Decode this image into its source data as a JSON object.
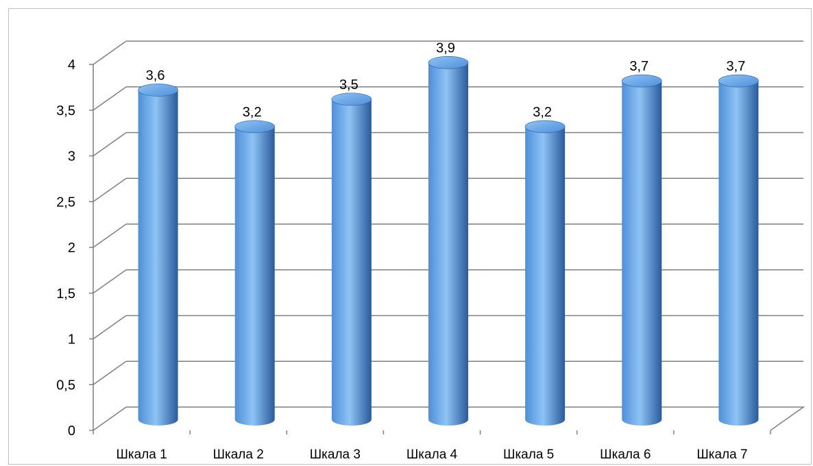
{
  "chart_data": {
    "type": "bar",
    "style": "3d-cylinder",
    "categories": [
      "Шкала 1",
      "Шкала 2",
      "Шкала 3",
      "Шкала 4",
      "Шкала 5",
      "Шкала 6",
      "Шкала 7"
    ],
    "values": [
      3.6,
      3.2,
      3.5,
      3.9,
      3.2,
      3.7,
      3.7
    ],
    "value_labels": [
      "3,6",
      "3,2",
      "3,5",
      "3,9",
      "3,2",
      "3,7",
      "3,7"
    ],
    "y_ticks": [
      0,
      0.5,
      1,
      1.5,
      2,
      2.5,
      3,
      3.5,
      4
    ],
    "y_tick_labels": [
      "0",
      "0,5",
      "1",
      "1,5",
      "2",
      "2,5",
      "3",
      "3,5",
      "4"
    ],
    "ylim": [
      0,
      4
    ],
    "title": "",
    "xlabel": "",
    "ylabel": "",
    "grid": true,
    "legend": "none",
    "colors": {
      "bar": "#4f8fd9",
      "bar_highlight": "#8ec3f5",
      "bar_shadow": "#2a5a9c",
      "grid": "#7f7f7f"
    }
  }
}
